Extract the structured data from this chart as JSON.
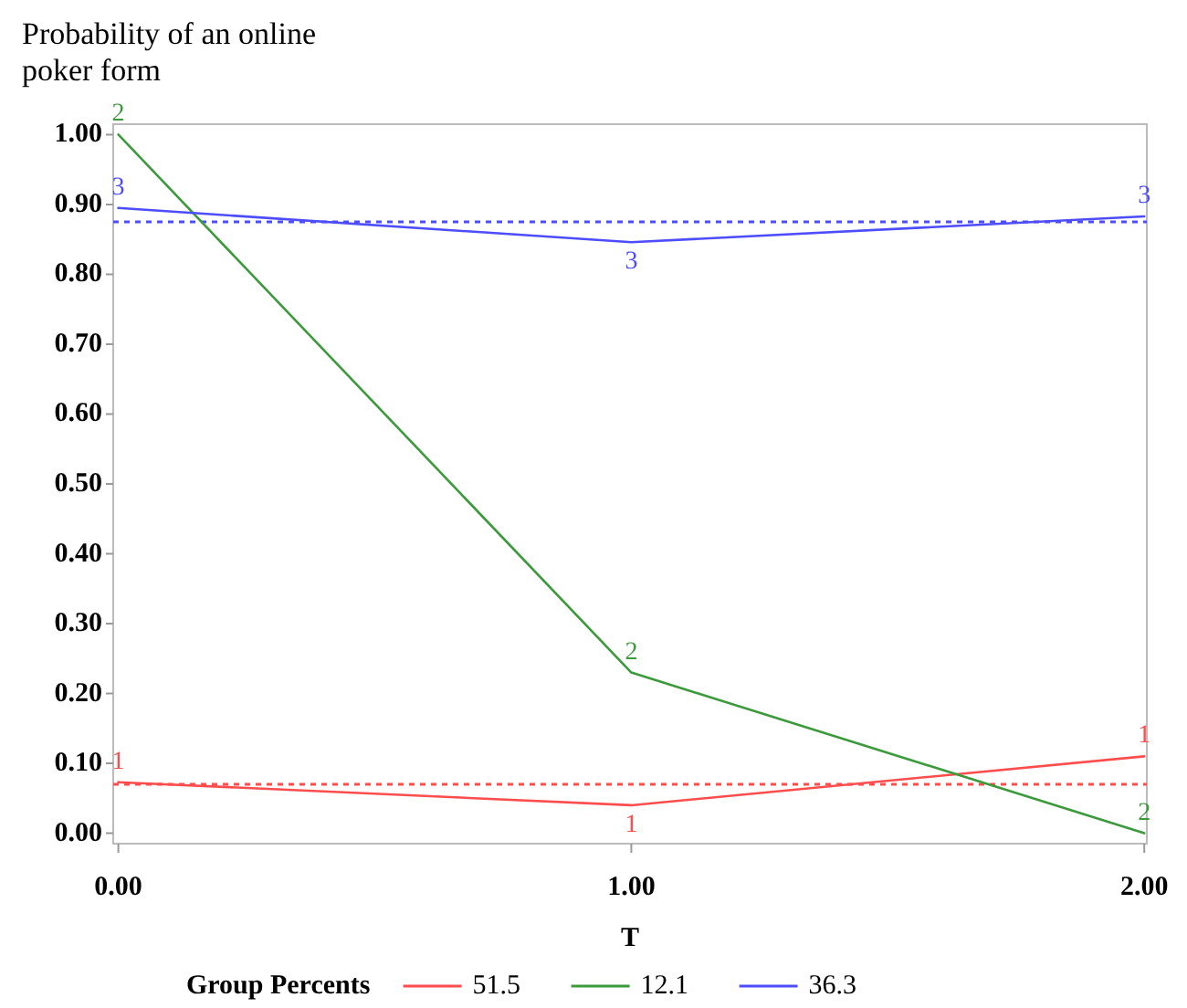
{
  "chart_data": {
    "type": "line",
    "ylabel": "Probability of an online poker form",
    "xlabel": "T",
    "legend_title": "Group Percents",
    "legend": "bottom",
    "grid": false,
    "line_style": "solid",
    "x": [
      0,
      1,
      2
    ],
    "series": [
      {
        "name": "51.5",
        "color": "#ff4d4d",
        "values": [
          0.073,
          0.04,
          0.11
        ]
      },
      {
        "name": "12.1",
        "color": "#3c9a3c",
        "values": [
          1.0,
          0.23,
          0.0
        ]
      },
      {
        "name": "36.3",
        "color": "#4d4dff",
        "values": [
          0.895,
          0.846,
          0.883
        ]
      }
    ],
    "ref_lines": [
      {
        "axis": "y",
        "value": 0.07,
        "color": "#ff4d4d",
        "line_style": "dotted"
      },
      {
        "axis": "y",
        "value": 0.875,
        "color": "#4d4dff",
        "line_style": "dotted"
      }
    ],
    "annotations": [
      {
        "text": "1",
        "x": 0,
        "y": 0.073
      },
      {
        "text": "1",
        "x": 1,
        "y": 0.04
      },
      {
        "text": "1",
        "x": 2,
        "y": 0.11
      },
      {
        "text": "2",
        "x": 0,
        "y": 1.0
      },
      {
        "text": "2",
        "x": 1,
        "y": 0.23
      },
      {
        "text": "2",
        "x": 2,
        "y": 0.0
      },
      {
        "text": "3",
        "x": 0,
        "y": 0.895
      },
      {
        "text": "3",
        "x": 1,
        "y": 0.846
      },
      {
        "text": "3",
        "x": 2,
        "y": 0.883
      }
    ],
    "xlim": [
      -0.01,
      2.005
    ],
    "ylim": [
      -0.015,
      1.015
    ],
    "xticks": [
      {
        "value": 0,
        "label": "0.00"
      },
      {
        "value": 1,
        "label": "1.00"
      },
      {
        "value": 2,
        "label": "2.00"
      }
    ],
    "yticks": [
      {
        "value": 0,
        "label": "0.00"
      },
      {
        "value": 0.1,
        "label": "0.10"
      },
      {
        "value": 0.2,
        "label": "0.20"
      },
      {
        "value": 0.3,
        "label": "0.30"
      },
      {
        "value": 0.4,
        "label": "0.40"
      },
      {
        "value": 0.5,
        "label": "0.50"
      },
      {
        "value": 0.6,
        "label": "0.60"
      },
      {
        "value": 0.7,
        "label": "0.70"
      },
      {
        "value": 0.8,
        "label": "0.80"
      },
      {
        "value": 0.9,
        "label": "0.90"
      },
      {
        "value": 1,
        "label": "1.00"
      }
    ]
  }
}
